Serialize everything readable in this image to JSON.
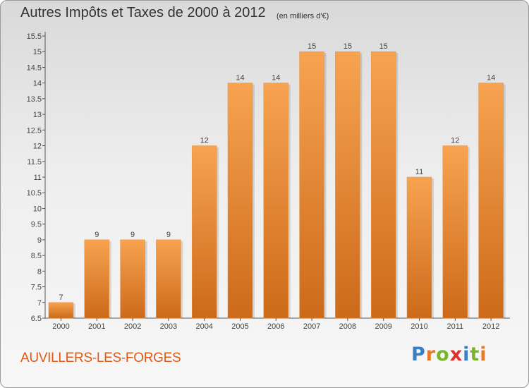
{
  "header": {
    "title": "Autres Impôts et Taxes de 2000 à 2012",
    "subtitle": "(en milliers d'€)"
  },
  "footer": {
    "commune": "AUVILLERS-LES-FORGES",
    "logo": "Proxiti",
    "logo_colors": [
      "#3b7fc4",
      "#e8782a",
      "#7bb52d",
      "#e0312d",
      "#3b7fc4",
      "#7bb52d",
      "#e8782a"
    ]
  },
  "colors": {
    "bar_light": "#f7a350",
    "bar_dark": "#cc6a1a",
    "axis": "#555555",
    "text": "#444444"
  },
  "chart_data": {
    "type": "bar",
    "categories": [
      "2000",
      "2001",
      "2002",
      "2003",
      "2004",
      "2005",
      "2006",
      "2007",
      "2008",
      "2009",
      "2010",
      "2011",
      "2012"
    ],
    "values": [
      7,
      9,
      9,
      9,
      12,
      14,
      14,
      15,
      15,
      15,
      11,
      12,
      14
    ],
    "data_labels": [
      "7",
      "9",
      "9",
      "9",
      "12",
      "14",
      "14",
      "15",
      "15",
      "15",
      "11",
      "12",
      "14"
    ],
    "ylim": [
      6.5,
      15.5
    ],
    "yticks": [
      "6.5",
      "7",
      "7.5",
      "8",
      "8.5",
      "9",
      "9.5",
      "10",
      "10.5",
      "11",
      "11.5",
      "12",
      "12.5",
      "13",
      "13.5",
      "14",
      "14.5",
      "15",
      "15.5"
    ],
    "grid": false,
    "legend": "none"
  }
}
